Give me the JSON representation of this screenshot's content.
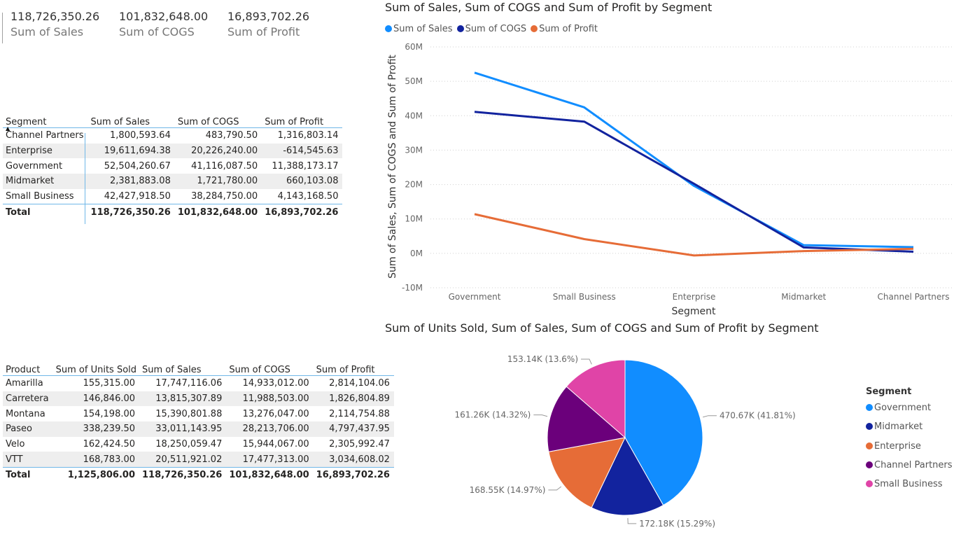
{
  "cards": [
    {
      "value": "118,726,350.26",
      "label": "Sum of Sales"
    },
    {
      "value": "101,832,648.00",
      "label": "Sum of COGS"
    },
    {
      "value": "16,893,702.26",
      "label": "Sum of Profit"
    }
  ],
  "segment_table": {
    "headers": [
      "Segment",
      "Sum of Sales",
      "Sum of COGS",
      "Sum of Profit"
    ],
    "rows": [
      [
        "Channel Partners",
        "1,800,593.64",
        "483,790.50",
        "1,316,803.14"
      ],
      [
        "Enterprise",
        "19,611,694.38",
        "20,226,240.00",
        "-614,545.63"
      ],
      [
        "Government",
        "52,504,260.67",
        "41,116,087.50",
        "11,388,173.17"
      ],
      [
        "Midmarket",
        "2,381,883.08",
        "1,721,780.00",
        "660,103.08"
      ],
      [
        "Small Business",
        "42,427,918.50",
        "38,284,750.00",
        "4,143,168.50"
      ]
    ],
    "total": [
      "Total",
      "118,726,350.26",
      "101,832,648.00",
      "16,893,702.26"
    ]
  },
  "product_table": {
    "headers": [
      "Product",
      "Sum of Units Sold",
      "Sum of Sales",
      "Sum of COGS",
      "Sum of Profit"
    ],
    "rows": [
      [
        "Amarilla",
        "155,315.00",
        "17,747,116.06",
        "14,933,012.00",
        "2,814,104.06"
      ],
      [
        "Carretera",
        "146,846.00",
        "13,815,307.89",
        "11,988,503.00",
        "1,826,804.89"
      ],
      [
        "Montana",
        "154,198.00",
        "15,390,801.88",
        "13,276,047.00",
        "2,114,754.88"
      ],
      [
        "Paseo",
        "338,239.50",
        "33,011,143.95",
        "28,213,706.00",
        "4,797,437.95"
      ],
      [
        "Velo",
        "162,424.50",
        "18,250,059.47",
        "15,944,067.00",
        "2,305,992.47"
      ],
      [
        "VTT",
        "168,783.00",
        "20,511,921.02",
        "17,477,313.00",
        "3,034,608.02"
      ]
    ],
    "total": [
      "Total",
      "1,125,806.00",
      "118,726,350.26",
      "101,832,648.00",
      "16,893,702.26"
    ]
  },
  "chart_data": [
    {
      "type": "line",
      "title": "Sum of Sales, Sum of COGS and Sum of Profit by Segment",
      "xlabel": "Segment",
      "ylabel": "Sum of Sales, Sum of COGS and Sum of Profit",
      "categories": [
        "Government",
        "Small Business",
        "Enterprise",
        "Midmarket",
        "Channel Partners"
      ],
      "yticks": [
        "-10M",
        "0M",
        "10M",
        "20M",
        "30M",
        "40M",
        "50M",
        "60M"
      ],
      "ylim": [
        -10000000,
        60000000
      ],
      "grid": true,
      "legend_position": "top-left",
      "series": [
        {
          "name": "Sum of  Sales",
          "color": "#118DFF",
          "values": [
            52504260.67,
            42427918.5,
            19611694.38,
            2381883.08,
            1800593.64
          ]
        },
        {
          "name": "Sum of COGS",
          "color": "#12239E",
          "values": [
            41116087.5,
            38284750.0,
            20226240.0,
            1721780.0,
            483790.5
          ]
        },
        {
          "name": "Sum of Profit",
          "color": "#E66C37",
          "values": [
            11388173.17,
            4143168.5,
            -614545.63,
            660103.08,
            1316803.14
          ]
        }
      ]
    },
    {
      "type": "pie",
      "title": "Sum of Units Sold, Sum of Sales, Sum of COGS and Sum of Profit by Segment",
      "legend_title": "Segment",
      "legend_position": "right",
      "slices": [
        {
          "name": "Government",
          "value": 470.67,
          "label": "470.67K (41.81%)",
          "color": "#118DFF"
        },
        {
          "name": "Midmarket",
          "value": 172.18,
          "label": "172.18K (15.29%)",
          "color": "#12239E"
        },
        {
          "name": "Enterprise",
          "value": 168.55,
          "label": "168.55K (14.97%)",
          "color": "#E66C37"
        },
        {
          "name": "Channel Partners",
          "value": 161.26,
          "label": "161.26K (14.32%)",
          "color": "#6B007B"
        },
        {
          "name": "Small Business",
          "value": 153.14,
          "label": "153.14K (13.6%)",
          "color": "#E044A7"
        }
      ]
    }
  ]
}
